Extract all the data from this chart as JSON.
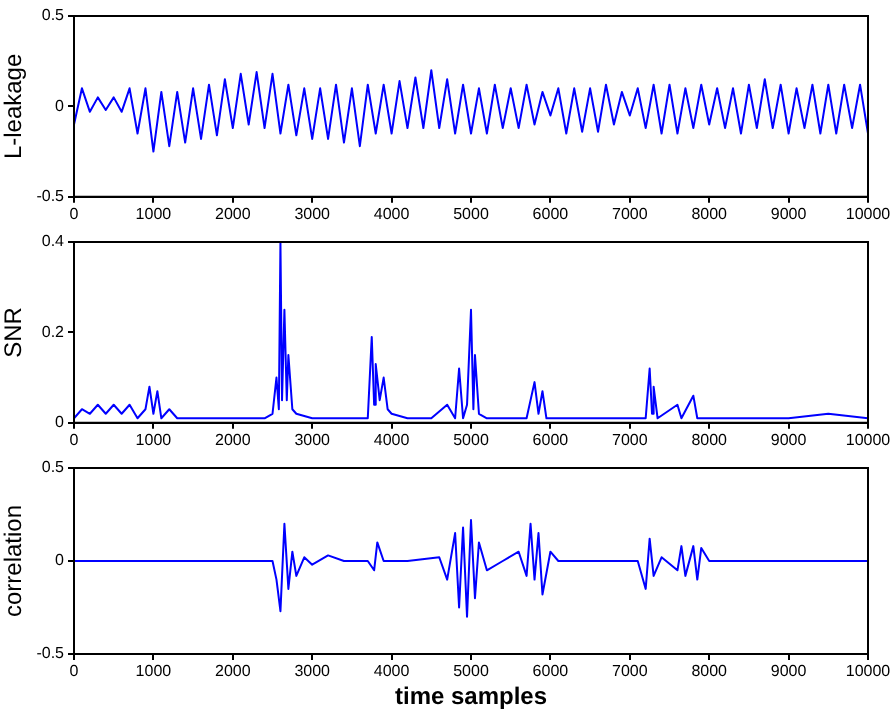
{
  "chart_data": [
    {
      "type": "line",
      "ylabel": "L-leakage",
      "xlim": [
        0,
        10000
      ],
      "xticks": [
        0,
        1000,
        2000,
        3000,
        4000,
        5000,
        6000,
        7000,
        8000,
        9000,
        10000
      ],
      "ylim": [
        -0.5,
        0.5
      ],
      "yticks": [
        -0.5,
        0,
        0.5
      ],
      "grid": false,
      "legend": false,
      "marker": "none",
      "series": [
        {
          "color": "#0000ff",
          "x": [
            0,
            100,
            200,
            300,
            400,
            500,
            600,
            700,
            800,
            900,
            1000,
            1100,
            1200,
            1300,
            1400,
            1500,
            1600,
            1700,
            1800,
            1900,
            2000,
            2100,
            2200,
            2300,
            2400,
            2500,
            2600,
            2700,
            2800,
            2900,
            3000,
            3100,
            3200,
            3300,
            3400,
            3500,
            3600,
            3700,
            3800,
            3900,
            4000,
            4100,
            4200,
            4300,
            4400,
            4500,
            4600,
            4700,
            4800,
            4900,
            5000,
            5100,
            5200,
            5300,
            5400,
            5500,
            5600,
            5700,
            5800,
            5900,
            6000,
            6100,
            6200,
            6300,
            6400,
            6500,
            6600,
            6700,
            6800,
            6900,
            7000,
            7100,
            7200,
            7300,
            7400,
            7500,
            7600,
            7700,
            7800,
            7900,
            8000,
            8100,
            8200,
            8300,
            8400,
            8500,
            8600,
            8700,
            8800,
            8900,
            9000,
            9100,
            9200,
            9300,
            9400,
            9500,
            9600,
            9700,
            9800,
            9900,
            10000
          ],
          "values": [
            -0.1,
            0.1,
            -0.03,
            0.05,
            -0.02,
            0.05,
            -0.03,
            0.1,
            -0.15,
            0.1,
            -0.25,
            0.08,
            -0.22,
            0.08,
            -0.2,
            0.1,
            -0.18,
            0.12,
            -0.16,
            0.15,
            -0.12,
            0.18,
            -0.1,
            0.19,
            -0.12,
            0.18,
            -0.15,
            0.12,
            -0.16,
            0.1,
            -0.18,
            0.1,
            -0.18,
            0.12,
            -0.2,
            0.1,
            -0.22,
            0.12,
            -0.15,
            0.12,
            -0.15,
            0.14,
            -0.12,
            0.16,
            -0.12,
            0.2,
            -0.12,
            0.15,
            -0.15,
            0.12,
            -0.15,
            0.1,
            -0.15,
            0.12,
            -0.12,
            0.1,
            -0.12,
            0.12,
            -0.1,
            0.08,
            -0.05,
            0.1,
            -0.15,
            0.1,
            -0.14,
            0.1,
            -0.14,
            0.12,
            -0.1,
            0.08,
            -0.05,
            0.1,
            -0.12,
            0.12,
            -0.15,
            0.12,
            -0.15,
            0.1,
            -0.12,
            0.12,
            -0.1,
            0.1,
            -0.12,
            0.1,
            -0.15,
            0.12,
            -0.12,
            0.15,
            -0.12,
            0.12,
            -0.15,
            0.1,
            -0.12,
            0.12,
            -0.15,
            0.12,
            -0.15,
            0.12,
            -0.12,
            0.12,
            -0.15
          ]
        }
      ]
    },
    {
      "type": "line",
      "ylabel": "SNR",
      "xlim": [
        0,
        10000
      ],
      "xticks": [
        0,
        1000,
        2000,
        3000,
        4000,
        5000,
        6000,
        7000,
        8000,
        9000,
        10000
      ],
      "ylim": [
        0,
        0.4
      ],
      "yticks": [
        0,
        0.2,
        0.4
      ],
      "grid": false,
      "legend": false,
      "marker": "none",
      "series": [
        {
          "color": "#0000ff",
          "x": [
            0,
            100,
            200,
            300,
            400,
            500,
            600,
            700,
            800,
            900,
            950,
            1000,
            1050,
            1100,
            1200,
            1300,
            1500,
            2000,
            2400,
            2500,
            2550,
            2580,
            2600,
            2620,
            2650,
            2680,
            2700,
            2750,
            2800,
            3000,
            3500,
            3700,
            3750,
            3780,
            3800,
            3850,
            3900,
            3950,
            4000,
            4200,
            4500,
            4700,
            4800,
            4850,
            4900,
            4950,
            5000,
            5030,
            5050,
            5100,
            5200,
            5700,
            5800,
            5850,
            5900,
            5950,
            6500,
            7200,
            7250,
            7280,
            7300,
            7350,
            7600,
            7650,
            7800,
            7850,
            8500,
            9000,
            9500,
            10000
          ],
          "values": [
            0.01,
            0.03,
            0.02,
            0.04,
            0.02,
            0.04,
            0.02,
            0.04,
            0.01,
            0.03,
            0.08,
            0.02,
            0.07,
            0.01,
            0.03,
            0.01,
            0.01,
            0.01,
            0.01,
            0.02,
            0.1,
            0.03,
            0.4,
            0.05,
            0.25,
            0.05,
            0.15,
            0.03,
            0.02,
            0.01,
            0.01,
            0.01,
            0.19,
            0.04,
            0.13,
            0.05,
            0.1,
            0.03,
            0.02,
            0.01,
            0.01,
            0.04,
            0.01,
            0.12,
            0.01,
            0.04,
            0.25,
            0.03,
            0.15,
            0.02,
            0.01,
            0.01,
            0.09,
            0.02,
            0.07,
            0.01,
            0.01,
            0.01,
            0.12,
            0.02,
            0.08,
            0.01,
            0.04,
            0.01,
            0.06,
            0.01,
            0.01,
            0.01,
            0.02,
            0.01
          ]
        }
      ]
    },
    {
      "type": "line",
      "xlabel": "time samples",
      "ylabel": "correlation",
      "xlim": [
        0,
        10000
      ],
      "xticks": [
        0,
        1000,
        2000,
        3000,
        4000,
        5000,
        6000,
        7000,
        8000,
        9000,
        10000
      ],
      "ylim": [
        -0.5,
        0.5
      ],
      "yticks": [
        -0.5,
        0,
        0.5
      ],
      "grid": false,
      "legend": false,
      "marker": "none",
      "series": [
        {
          "color": "#0000ff",
          "x": [
            0,
            2500,
            2550,
            2600,
            2650,
            2700,
            2750,
            2800,
            2900,
            3000,
            3200,
            3400,
            3700,
            3780,
            3820,
            3900,
            4200,
            4600,
            4700,
            4800,
            4850,
            4900,
            4950,
            5000,
            5050,
            5100,
            5200,
            5400,
            5600,
            5700,
            5750,
            5800,
            5850,
            5900,
            6000,
            6100,
            7100,
            7200,
            7250,
            7300,
            7400,
            7600,
            7650,
            7700,
            7800,
            7850,
            7900,
            8000,
            10000
          ],
          "values": [
            0,
            0,
            -0.1,
            -0.27,
            0.2,
            -0.15,
            0.05,
            -0.08,
            0.02,
            -0.02,
            0.03,
            0,
            0,
            -0.05,
            0.1,
            0,
            0,
            0.02,
            -0.1,
            0.15,
            -0.25,
            0.18,
            -0.3,
            0.22,
            -0.2,
            0.1,
            -0.05,
            0,
            0.05,
            -0.08,
            0.2,
            -0.1,
            0.15,
            -0.18,
            0.05,
            0,
            0,
            -0.15,
            0.12,
            -0.08,
            0.02,
            -0.05,
            0.08,
            -0.08,
            0.08,
            -0.1,
            0.07,
            0,
            0
          ]
        }
      ]
    }
  ]
}
